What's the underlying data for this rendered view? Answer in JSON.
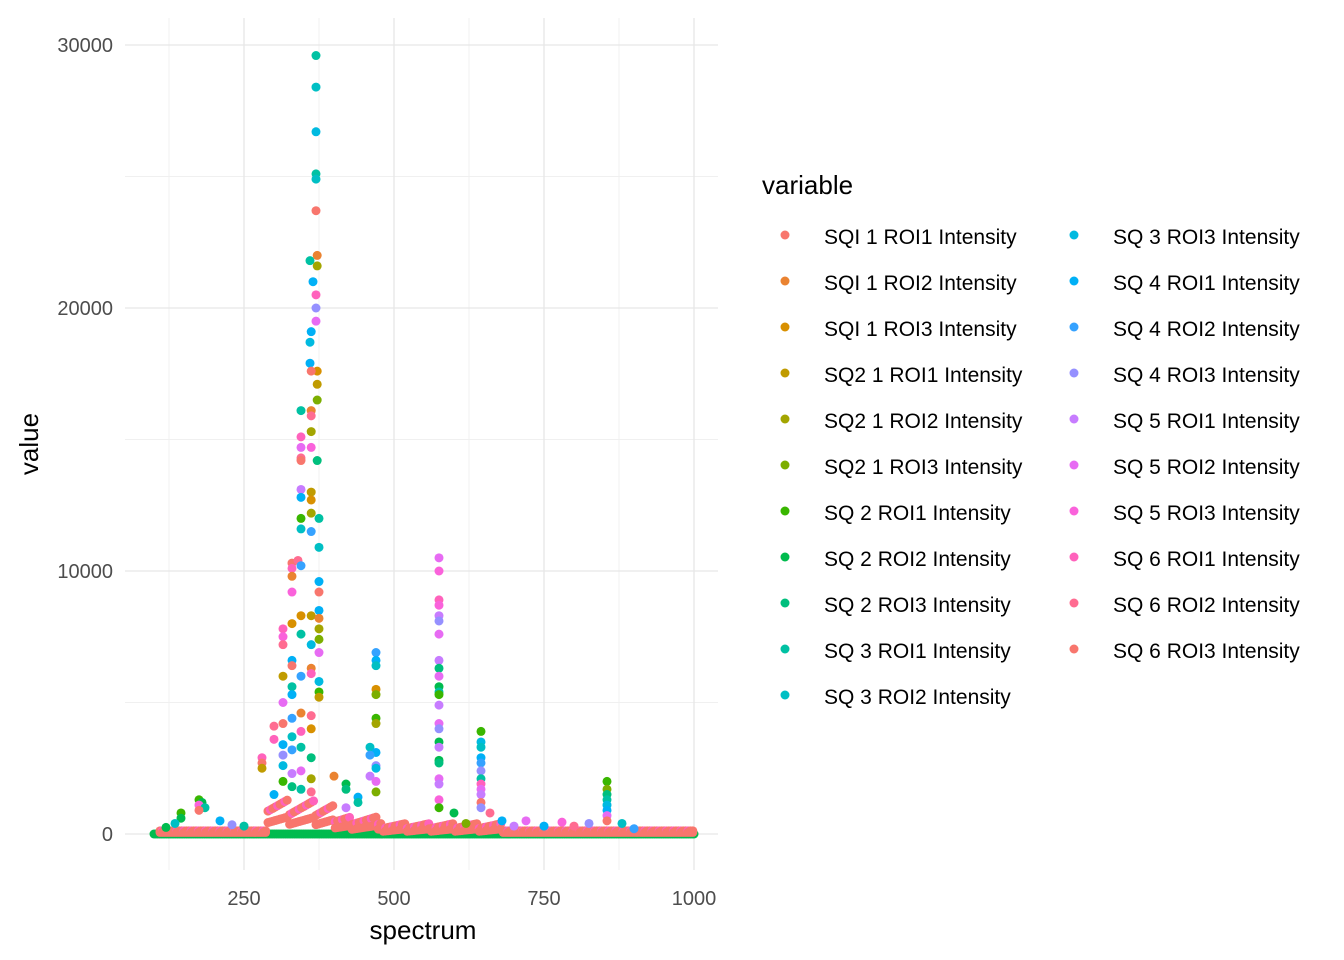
{
  "chart_data": {
    "type": "scatter",
    "title": "",
    "xlabel": "spectrum",
    "ylabel": "value",
    "xlim": [
      100,
      1000
    ],
    "ylim": [
      0,
      30000
    ],
    "x_ticks": [
      250,
      500,
      750,
      1000
    ],
    "y_ticks": [
      0,
      10000,
      20000,
      30000
    ],
    "grid": true,
    "legend": {
      "title": "variable",
      "placement": "right"
    },
    "series": [
      {
        "name": "SQI 1 ROI1 Intensity",
        "color": "#F8766D"
      },
      {
        "name": "SQI 1 ROI2 Intensity",
        "color": "#EA8331"
      },
      {
        "name": "SQI 1 ROI3 Intensity",
        "color": "#D89000"
      },
      {
        "name": "SQ2 1 ROI1 Intensity",
        "color": "#C09B00"
      },
      {
        "name": "SQ2 1 ROI2 Intensity",
        "color": "#A3A500"
      },
      {
        "name": "SQ2 1 ROI3 Intensity",
        "color": "#7CAE00"
      },
      {
        "name": "SQ 2 ROI1 Intensity",
        "color": "#39B600"
      },
      {
        "name": "SQ 2 ROI2 Intensity",
        "color": "#00BB4E"
      },
      {
        "name": "SQ 2 ROI3 Intensity",
        "color": "#00BF7D"
      },
      {
        "name": "SQ 3 ROI1 Intensity",
        "color": "#00C1A3"
      },
      {
        "name": "SQ 3 ROI2 Intensity",
        "color": "#00BFC4"
      },
      {
        "name": "SQ 3 ROI3 Intensity",
        "color": "#00BAE0"
      },
      {
        "name": "SQ 4 ROI1 Intensity",
        "color": "#00B0F6"
      },
      {
        "name": "SQ 4 ROI2 Intensity",
        "color": "#35A2FF"
      },
      {
        "name": "SQ 4 ROI3 Intensity",
        "color": "#9590FF"
      },
      {
        "name": "SQ 5 ROI1 Intensity",
        "color": "#C77CFF"
      },
      {
        "name": "SQ 5 ROI2 Intensity",
        "color": "#E76BF3"
      },
      {
        "name": "SQ 5 ROI3 Intensity",
        "color": "#FA62DB"
      },
      {
        "name": "SQ 6 ROI1 Intensity",
        "color": "#FF62BC"
      },
      {
        "name": "SQ 6 ROI2 Intensity",
        "color": "#FF6C91"
      },
      {
        "name": "SQ 6 ROI3 Intensity",
        "color": "#F8766D"
      }
    ],
    "points": [
      [
        370,
        29600,
        9
      ],
      [
        370,
        28400,
        10
      ],
      [
        370,
        26700,
        11
      ],
      [
        370,
        25100,
        9
      ],
      [
        370,
        24900,
        10
      ],
      [
        370,
        23700,
        20
      ],
      [
        372,
        22000,
        1
      ],
      [
        372,
        21600,
        4
      ],
      [
        360,
        21800,
        9
      ],
      [
        365,
        21000,
        12
      ],
      [
        370,
        20500,
        18
      ],
      [
        370,
        20000,
        14
      ],
      [
        370,
        19500,
        16
      ],
      [
        362,
        19100,
        12
      ],
      [
        360,
        18700,
        11
      ],
      [
        360,
        17900,
        12
      ],
      [
        372,
        17600,
        2
      ],
      [
        372,
        17100,
        3
      ],
      [
        372,
        16500,
        5
      ],
      [
        362,
        17600,
        20
      ],
      [
        345,
        16100,
        9
      ],
      [
        362,
        16100,
        1
      ],
      [
        362,
        15900,
        19
      ],
      [
        362,
        15300,
        4
      ],
      [
        345,
        15100,
        18
      ],
      [
        345,
        14700,
        16
      ],
      [
        362,
        14700,
        17
      ],
      [
        345,
        14300,
        19
      ],
      [
        345,
        14200,
        20
      ],
      [
        372,
        14200,
        8
      ],
      [
        362,
        13000,
        3
      ],
      [
        345,
        13100,
        15
      ],
      [
        345,
        12800,
        12
      ],
      [
        362,
        12700,
        2
      ],
      [
        362,
        12200,
        4
      ],
      [
        375,
        12000,
        9
      ],
      [
        345,
        12000,
        6
      ],
      [
        345,
        11600,
        10
      ],
      [
        362,
        11500,
        13
      ],
      [
        375,
        10900,
        10
      ],
      [
        330,
        10300,
        20
      ],
      [
        340,
        10400,
        19
      ],
      [
        330,
        10100,
        18
      ],
      [
        345,
        10200,
        13
      ],
      [
        330,
        9800,
        1
      ],
      [
        375,
        9600,
        12
      ],
      [
        330,
        9200,
        17
      ],
      [
        375,
        9200,
        20
      ],
      [
        345,
        8300,
        2
      ],
      [
        362,
        8300,
        3
      ],
      [
        375,
        8500,
        12
      ],
      [
        375,
        8200,
        1
      ],
      [
        330,
        8000,
        2
      ],
      [
        375,
        7800,
        4
      ],
      [
        315,
        7800,
        18
      ],
      [
        315,
        7500,
        17
      ],
      [
        345,
        7600,
        9
      ],
      [
        375,
        7400,
        5
      ],
      [
        315,
        7200,
        19
      ],
      [
        362,
        7200,
        11
      ],
      [
        375,
        6900,
        16
      ],
      [
        330,
        6600,
        12
      ],
      [
        330,
        6400,
        20
      ],
      [
        362,
        6300,
        1
      ],
      [
        362,
        6100,
        18
      ],
      [
        315,
        6000,
        3
      ],
      [
        345,
        6000,
        13
      ],
      [
        375,
        5800,
        11
      ],
      [
        330,
        5600,
        9
      ],
      [
        375,
        5400,
        6
      ],
      [
        375,
        5200,
        3
      ],
      [
        330,
        5300,
        12
      ],
      [
        315,
        5000,
        16
      ],
      [
        345,
        4600,
        1
      ],
      [
        362,
        4500,
        19
      ],
      [
        330,
        4400,
        13
      ],
      [
        315,
        4200,
        20
      ],
      [
        300,
        4100,
        19
      ],
      [
        362,
        4000,
        2
      ],
      [
        345,
        3900,
        18
      ],
      [
        330,
        3700,
        10
      ],
      [
        300,
        3600,
        18
      ],
      [
        315,
        3400,
        12
      ],
      [
        345,
        3300,
        9
      ],
      [
        330,
        3200,
        13
      ],
      [
        315,
        3000,
        14
      ],
      [
        362,
        2900,
        8
      ],
      [
        280,
        2900,
        18
      ],
      [
        280,
        2700,
        20
      ],
      [
        280,
        2500,
        3
      ],
      [
        315,
        2600,
        11
      ],
      [
        345,
        2400,
        16
      ],
      [
        330,
        2300,
        15
      ],
      [
        362,
        2100,
        4
      ],
      [
        400,
        2200,
        1
      ],
      [
        315,
        2000,
        6
      ],
      [
        330,
        1800,
        8
      ],
      [
        345,
        1700,
        9
      ],
      [
        362,
        1600,
        19
      ],
      [
        300,
        1500,
        12
      ],
      [
        470,
        6900,
        13
      ],
      [
        470,
        6600,
        12
      ],
      [
        470,
        6400,
        10
      ],
      [
        470,
        5500,
        2
      ],
      [
        470,
        5300,
        5
      ],
      [
        470,
        4400,
        6
      ],
      [
        470,
        4200,
        4
      ],
      [
        460,
        3300,
        10
      ],
      [
        470,
        3100,
        12
      ],
      [
        460,
        3000,
        13
      ],
      [
        470,
        2600,
        14
      ],
      [
        470,
        2500,
        11
      ],
      [
        460,
        2200,
        15
      ],
      [
        470,
        2000,
        16
      ],
      [
        470,
        1600,
        5
      ],
      [
        420,
        1900,
        7
      ],
      [
        420,
        1700,
        8
      ],
      [
        440,
        1400,
        12
      ],
      [
        440,
        1200,
        9
      ],
      [
        420,
        1000,
        15
      ],
      [
        575,
        10500,
        16
      ],
      [
        575,
        10000,
        17
      ],
      [
        575,
        8900,
        18
      ],
      [
        575,
        8700,
        17
      ],
      [
        575,
        8300,
        15
      ],
      [
        575,
        8100,
        14
      ],
      [
        575,
        7600,
        16
      ],
      [
        575,
        6600,
        15
      ],
      [
        575,
        6300,
        8
      ],
      [
        575,
        6000,
        16
      ],
      [
        575,
        5600,
        7
      ],
      [
        575,
        5400,
        9
      ],
      [
        575,
        5300,
        6
      ],
      [
        575,
        4900,
        15
      ],
      [
        575,
        4200,
        16
      ],
      [
        575,
        4000,
        14
      ],
      [
        575,
        3500,
        7
      ],
      [
        575,
        3300,
        15
      ],
      [
        575,
        2800,
        7
      ],
      [
        575,
        2700,
        8
      ],
      [
        575,
        2100,
        16
      ],
      [
        575,
        1900,
        15
      ],
      [
        575,
        1300,
        17
      ],
      [
        575,
        1000,
        6
      ],
      [
        645,
        3900,
        6
      ],
      [
        645,
        3500,
        11
      ],
      [
        645,
        3300,
        10
      ],
      [
        645,
        2900,
        12
      ],
      [
        645,
        2700,
        13
      ],
      [
        645,
        2400,
        14
      ],
      [
        645,
        2100,
        9
      ],
      [
        645,
        1900,
        18
      ],
      [
        645,
        1700,
        16
      ],
      [
        645,
        1500,
        15
      ],
      [
        645,
        1200,
        20
      ],
      [
        645,
        1000,
        14
      ],
      [
        660,
        800,
        19
      ],
      [
        855,
        2000,
        6
      ],
      [
        855,
        1700,
        5
      ],
      [
        855,
        1500,
        8
      ],
      [
        855,
        1300,
        9
      ],
      [
        855,
        1100,
        11
      ],
      [
        855,
        900,
        12
      ],
      [
        855,
        700,
        16
      ],
      [
        855,
        500,
        20
      ],
      [
        175,
        1300,
        6
      ],
      [
        180,
        1200,
        7
      ],
      [
        175,
        1100,
        17
      ],
      [
        185,
        1000,
        9
      ],
      [
        175,
        900,
        20
      ],
      [
        145,
        800,
        6
      ],
      [
        145,
        600,
        7
      ],
      [
        135,
        400,
        10
      ],
      [
        120,
        250,
        7
      ],
      [
        210,
        500,
        12
      ],
      [
        230,
        350,
        14
      ],
      [
        250,
        300,
        9
      ],
      [
        600,
        800,
        7
      ],
      [
        620,
        400,
        5
      ],
      [
        680,
        500,
        12
      ],
      [
        700,
        300,
        15
      ],
      [
        720,
        500,
        16
      ],
      [
        750,
        300,
        12
      ],
      [
        780,
        450,
        17
      ],
      [
        800,
        300,
        19
      ],
      [
        825,
        400,
        14
      ],
      [
        880,
        400,
        10
      ],
      [
        900,
        200,
        13
      ]
    ],
    "baseline": {
      "x_start": 100,
      "x_end": 1000,
      "note": "dense cluster near 0"
    }
  },
  "legend_title": "variable"
}
